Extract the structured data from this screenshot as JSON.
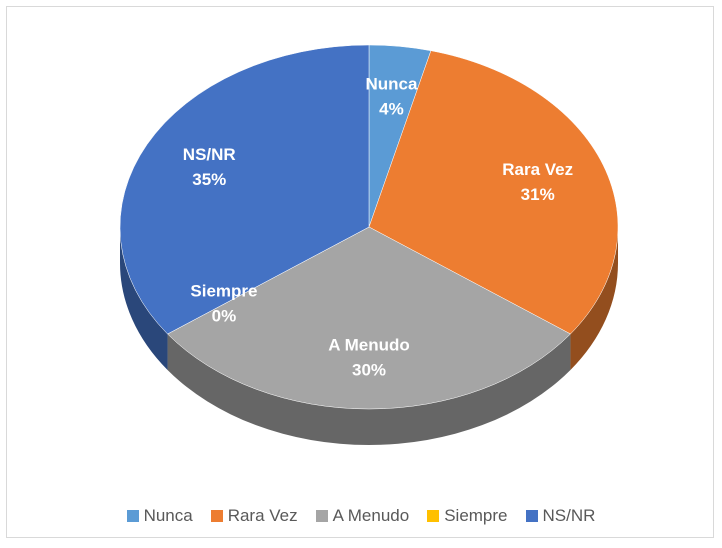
{
  "chart_data": {
    "type": "pie",
    "categories": [
      "Nunca",
      "Rara Vez",
      "A Menudo",
      "Siempre",
      "NS/NR"
    ],
    "values": [
      4,
      31,
      30,
      0,
      35
    ],
    "value_labels": [
      "4%",
      "31%",
      "30%",
      "0%",
      "35%"
    ],
    "colors": [
      "#5b9bd5",
      "#ed7d31",
      "#a5a5a5",
      "#ffc000",
      "#4472c4"
    ],
    "legend": "bottom"
  }
}
